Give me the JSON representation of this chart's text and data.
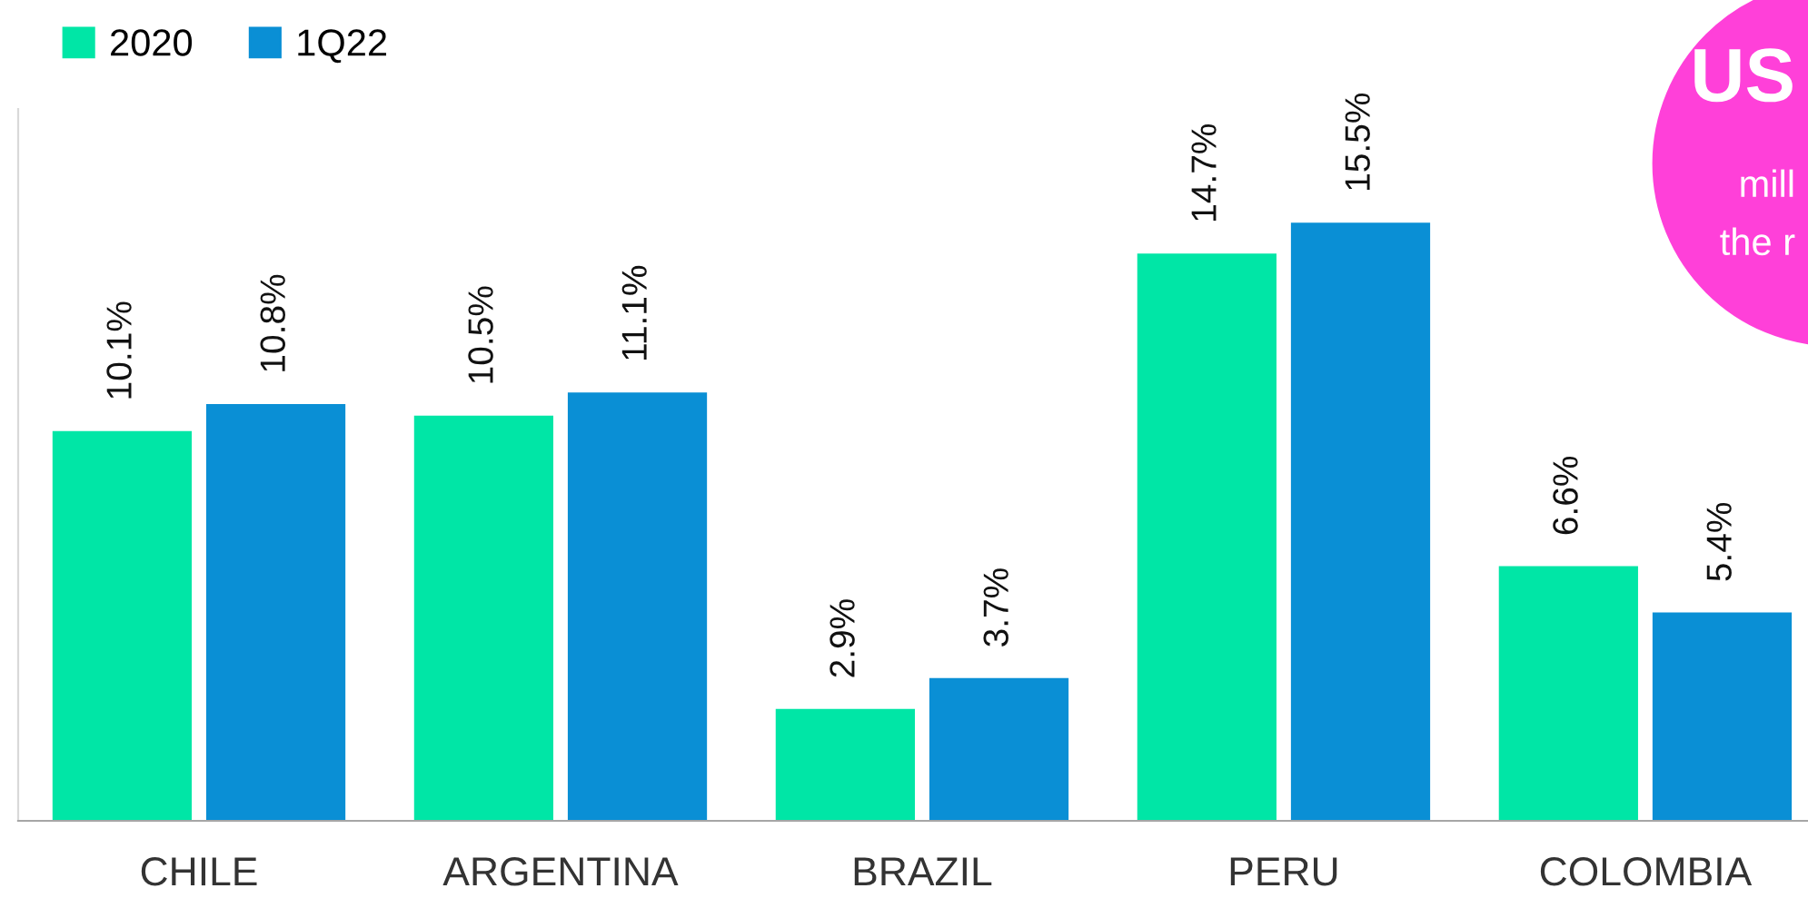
{
  "chart_data": {
    "type": "bar",
    "categories": [
      "CHILE",
      "ARGENTINA",
      "BRAZIL",
      "PERU",
      "COLOMBIA"
    ],
    "series": [
      {
        "name": "2020",
        "color": "#00e6a6",
        "values": [
          10.1,
          10.5,
          2.9,
          14.7,
          6.6
        ],
        "value_labels": [
          "10.1%",
          "10.5%",
          "2.9%",
          "14.7%",
          "6.6%"
        ]
      },
      {
        "name": "1Q22",
        "color": "#0a8fd5",
        "values": [
          10.8,
          11.1,
          3.7,
          15.5,
          5.4
        ],
        "value_labels": [
          "10.8%",
          "11.1%",
          "3.7%",
          "15.5%",
          "5.4%"
        ]
      }
    ],
    "legend": "top left",
    "annotations": [
      "US",
      "mill",
      "the r"
    ]
  }
}
